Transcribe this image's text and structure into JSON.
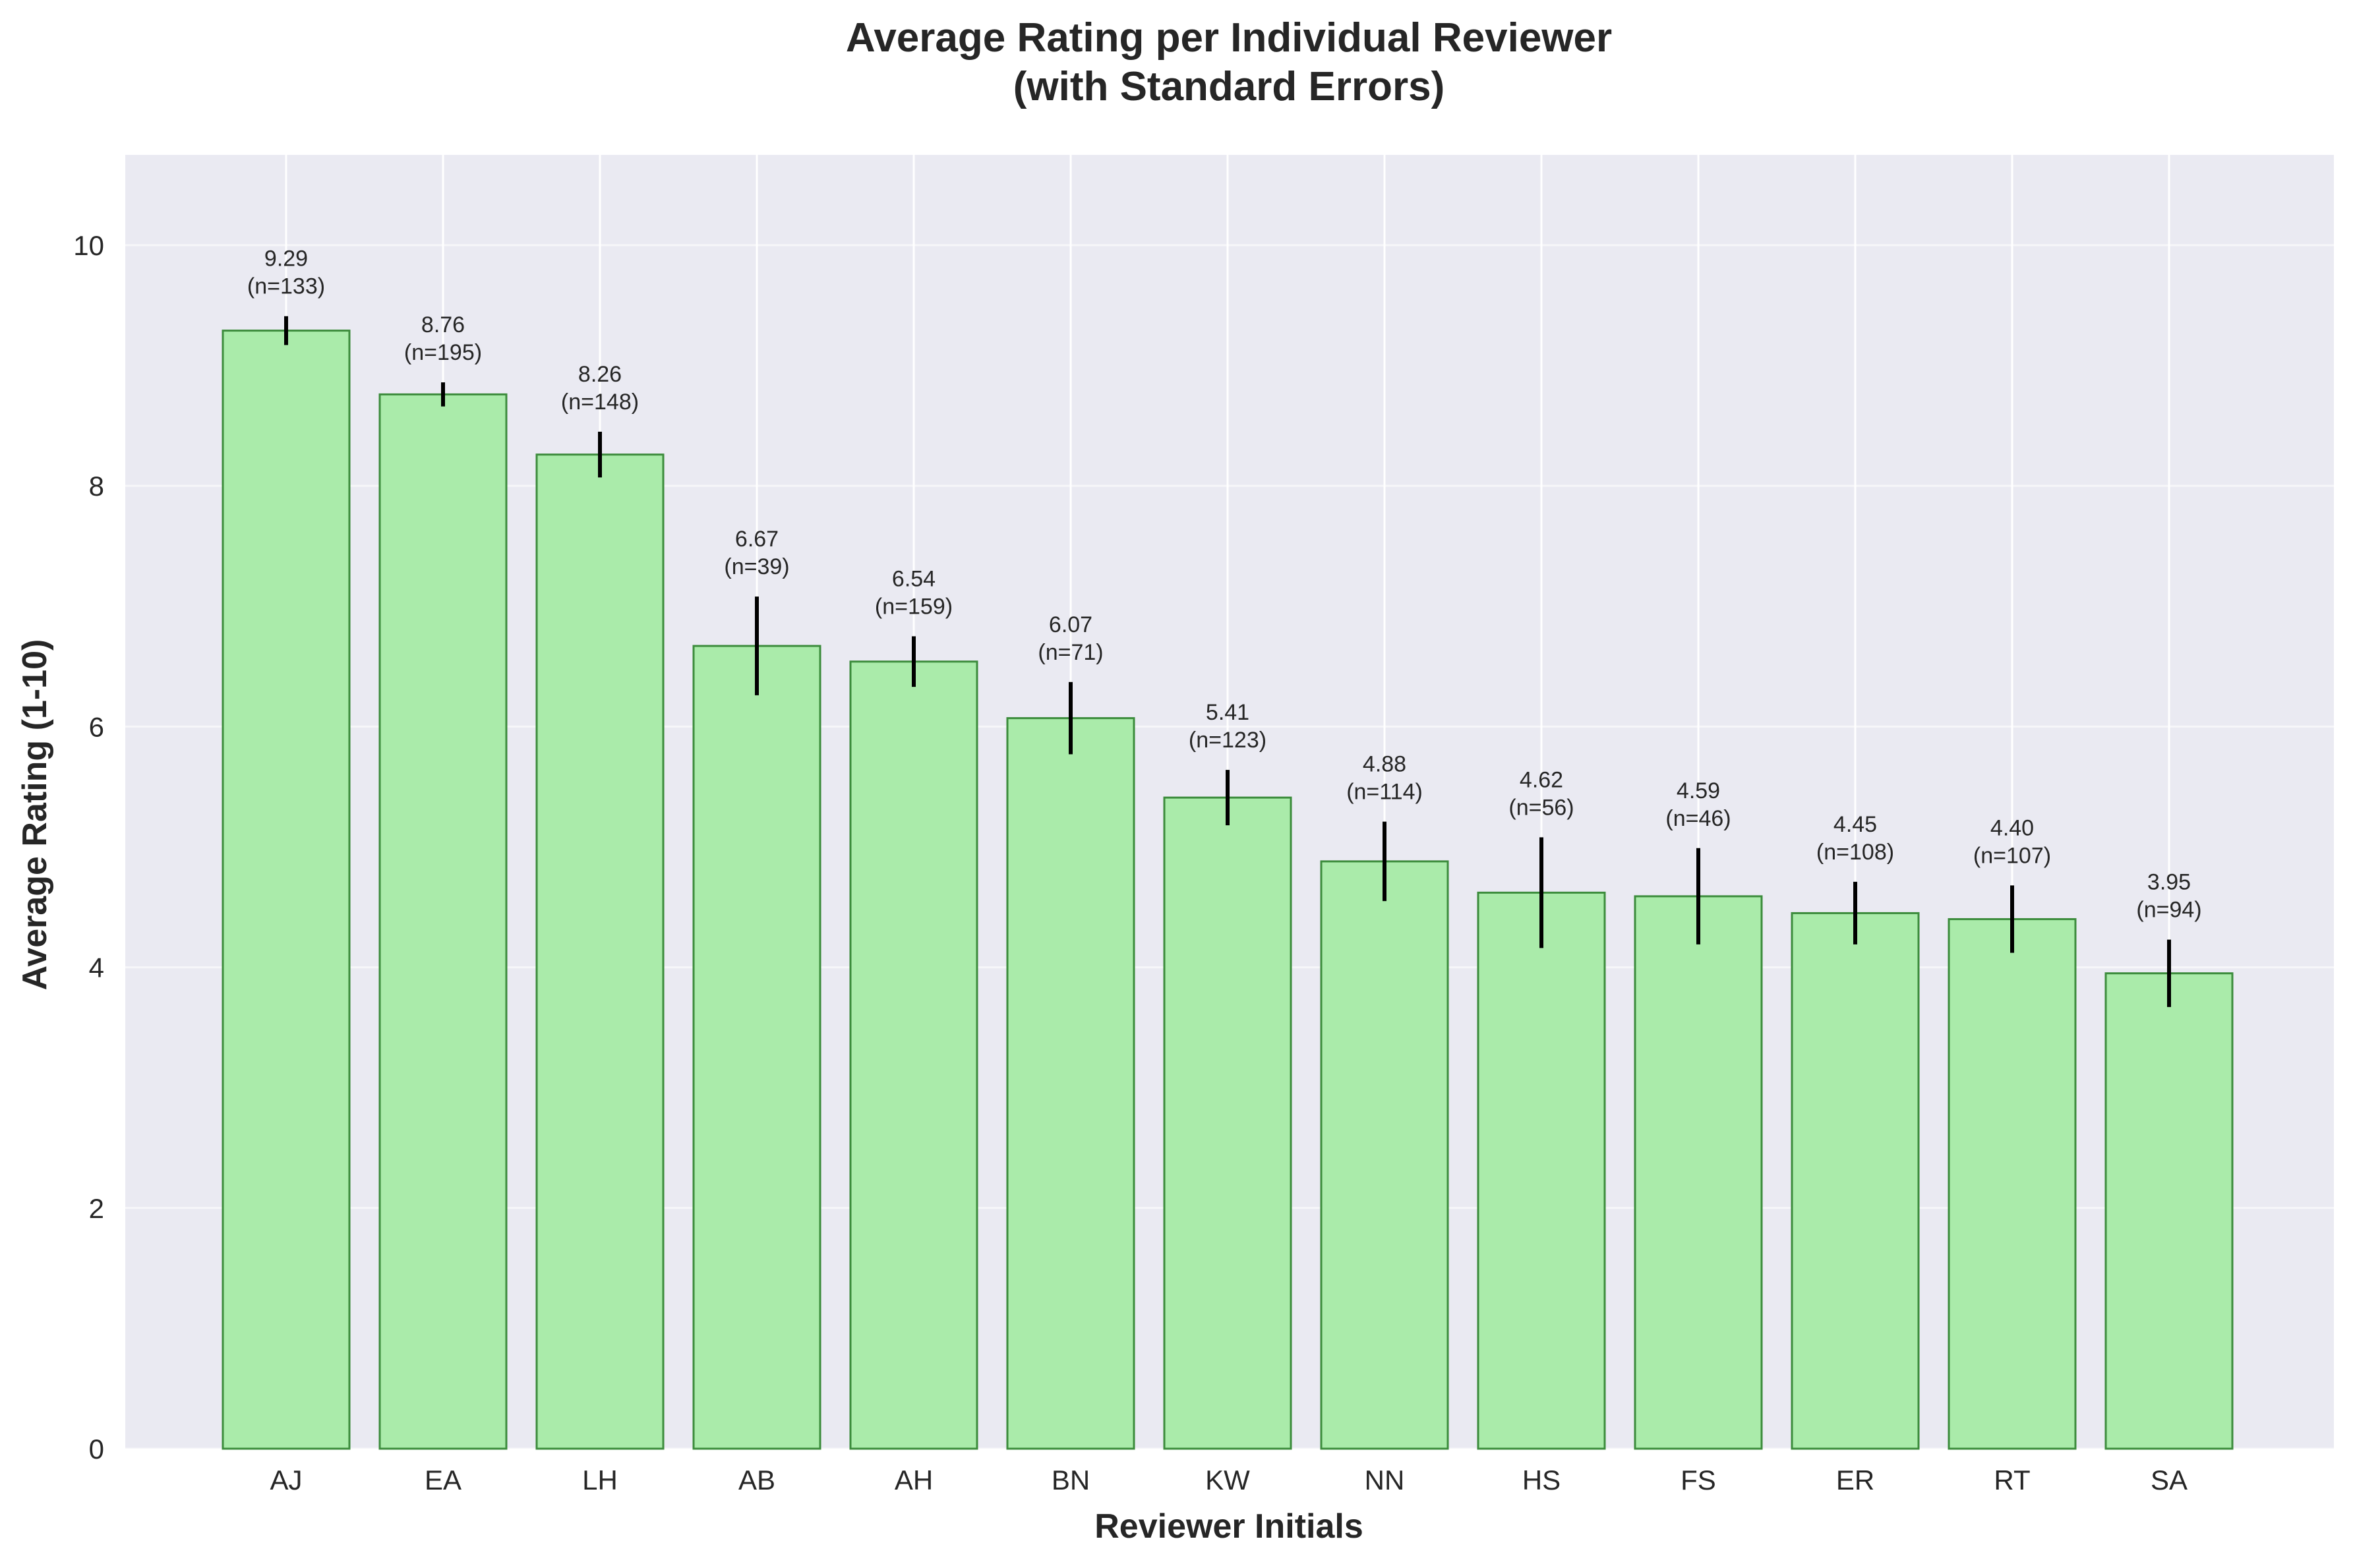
{
  "chart_data": {
    "type": "bar",
    "title": "Average Rating per Individual Reviewer",
    "subtitle": "(with Standard Errors)",
    "xlabel": "Reviewer Initials",
    "ylabel": "Average Rating (1-10)",
    "ylim": [
      0,
      10.75
    ],
    "yticks": [
      0,
      2,
      4,
      6,
      8,
      10
    ],
    "ytick_labels": [
      "0",
      "2",
      "4",
      "6",
      "8",
      "10"
    ],
    "categories": [
      "AJ",
      "EA",
      "LH",
      "AB",
      "AH",
      "BN",
      "KW",
      "NN",
      "HS",
      "FS",
      "ER",
      "RT",
      "SA"
    ],
    "values": [
      9.29,
      8.76,
      8.26,
      6.67,
      6.54,
      6.07,
      5.41,
      4.88,
      4.62,
      4.59,
      4.45,
      4.4,
      3.95
    ],
    "errors": [
      0.12,
      0.1,
      0.19,
      0.41,
      0.21,
      0.3,
      0.23,
      0.33,
      0.46,
      0.4,
      0.26,
      0.28,
      0.28
    ],
    "value_labels": [
      "9.29",
      "8.76",
      "8.26",
      "6.67",
      "6.54",
      "6.07",
      "5.41",
      "4.88",
      "4.62",
      "4.59",
      "4.45",
      "4.40",
      "3.95"
    ],
    "count_labels": [
      "(n=133)",
      "(n=195)",
      "(n=148)",
      "(n=39)",
      "(n=159)",
      "(n=71)",
      "(n=123)",
      "(n=114)",
      "(n=56)",
      "(n=46)",
      "(n=108)",
      "(n=107)",
      "(n=94)"
    ],
    "grid": true,
    "legend": "none",
    "colors": {
      "background": "#eaeaf2",
      "grid": "#ffffff",
      "bar_fill": "#aaebaa",
      "bar_edge": "#3c8c3c",
      "error_bar": "#000000",
      "text": "#262626"
    }
  }
}
